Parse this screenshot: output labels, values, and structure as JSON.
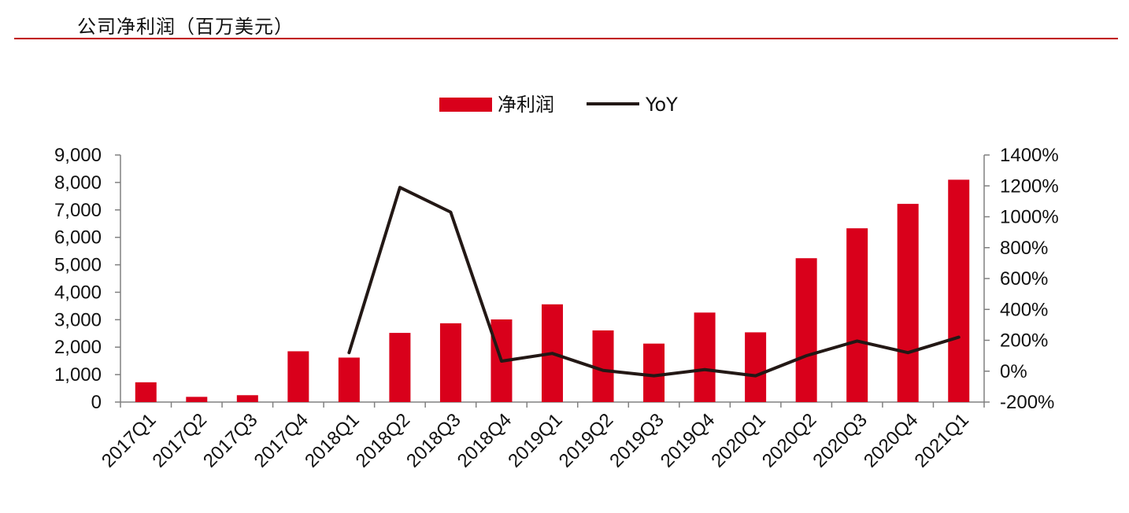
{
  "header": {
    "title": "公司净利润（百万美元）"
  },
  "colors": {
    "bar": "#d9001b",
    "line": "#231815",
    "axis": "#808080",
    "rule": "#c00000"
  },
  "chart_data": {
    "type": "bar+line",
    "title": "公司净利润（百万美元）",
    "categories": [
      "2017Q1",
      "2017Q2",
      "2017Q3",
      "2017Q4",
      "2018Q1",
      "2018Q2",
      "2018Q3",
      "2018Q4",
      "2019Q1",
      "2019Q2",
      "2019Q3",
      "2019Q4",
      "2020Q1",
      "2020Q2",
      "2020Q3",
      "2020Q4",
      "2021Q1"
    ],
    "series": [
      {
        "name": "净利润",
        "type": "bar",
        "axis": "left",
        "values": [
          720,
          190,
          250,
          1850,
          1620,
          2520,
          2870,
          3010,
          3560,
          2610,
          2130,
          3260,
          2540,
          5240,
          6330,
          7220,
          8100
        ]
      },
      {
        "name": "YoY",
        "type": "line",
        "axis": "right",
        "values": [
          null,
          null,
          null,
          null,
          120,
          1190,
          1030,
          65,
          115,
          5,
          -30,
          10,
          -30,
          100,
          195,
          120,
          220
        ]
      }
    ],
    "y_left": {
      "min": 0,
      "max": 9000,
      "step": 1000,
      "tick_labels": [
        "0",
        "1,000",
        "2,000",
        "3,000",
        "4,000",
        "5,000",
        "6,000",
        "7,000",
        "8,000",
        "9,000"
      ]
    },
    "y_right": {
      "min": -200,
      "max": 1400,
      "step": 200,
      "tick_labels": [
        "-200%",
        "0%",
        "200%",
        "400%",
        "600%",
        "800%",
        "1000%",
        "1200%",
        "1400%"
      ]
    },
    "legend": {
      "position": "top-center",
      "items": [
        "净利润",
        "YoY"
      ]
    },
    "grid": false
  }
}
